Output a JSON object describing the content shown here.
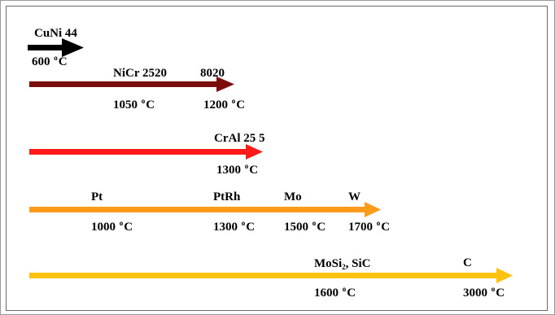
{
  "arrows": [
    {
      "id": "cuni",
      "color": "#000000",
      "labels": {
        "material": "CuNi 44",
        "t_value": "600",
        "t_unit": "C"
      }
    },
    {
      "id": "nicr",
      "color": "#7b0d0d",
      "labels": {
        "material1": "NiCr 2520",
        "material2": "8020",
        "t1_value": "1050",
        "t2_value": "1200",
        "t_unit": "C"
      }
    },
    {
      "id": "cral",
      "color": "#ff1a1a",
      "labels": {
        "material": "CrAl 25 5",
        "t_value": "1300",
        "t_unit": "C"
      }
    },
    {
      "id": "metals",
      "color": "#ff9a1a",
      "labels": {
        "m1": "Pt",
        "m2": "PtRh",
        "m3": "Mo",
        "m4": "W",
        "t1_value": "1000",
        "t2_value": "1300",
        "t3_value": "1500",
        "t4_value": "1700",
        "t_unit": "C"
      }
    },
    {
      "id": "ceramics",
      "color": "#ffc20e",
      "labels": {
        "m1_main": "MoSi",
        "m1_sub": "2",
        "m1_rest": ", SiC",
        "m2": "C",
        "t1_value": "1600",
        "t2_value": "3000",
        "t_unit": "C"
      }
    }
  ],
  "degree_symbol": "o"
}
